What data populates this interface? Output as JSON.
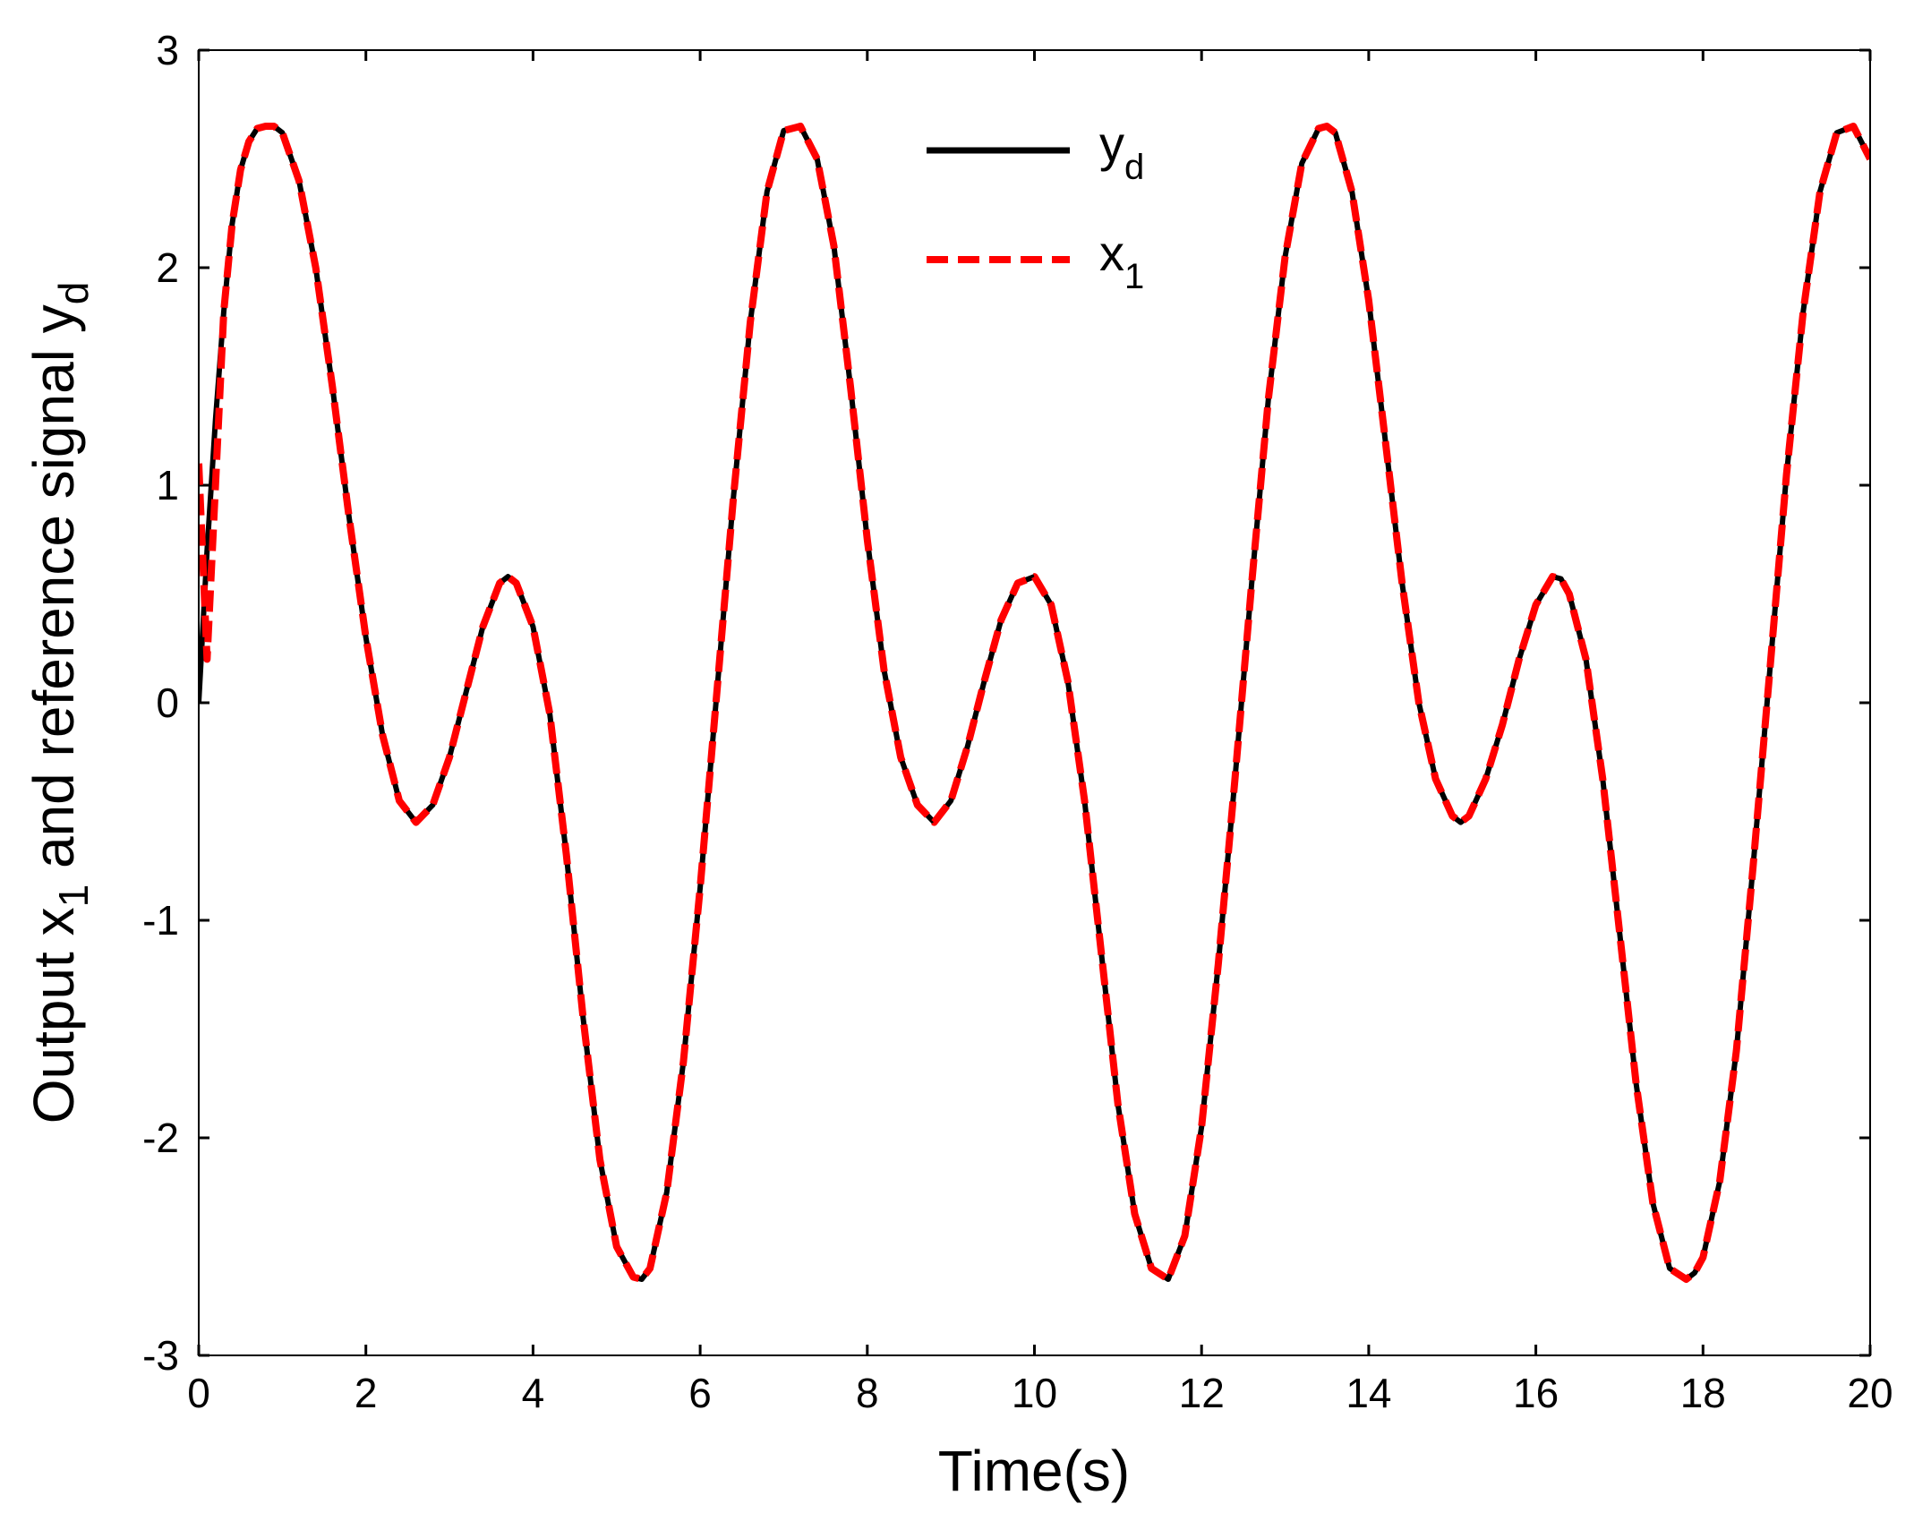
{
  "chart_data": {
    "type": "line",
    "xlabel": "Time(s)",
    "ylabel": {
      "prefix": "Output x",
      "prefix_sub": "1",
      "middle": " and reference signal y",
      "suffix_sub": "d"
    },
    "xlim": [
      0,
      20
    ],
    "ylim": [
      -3,
      3
    ],
    "xticks": [
      0,
      2,
      4,
      6,
      8,
      10,
      12,
      14,
      16,
      18,
      20
    ],
    "yticks": [
      -3,
      -2,
      -1,
      0,
      1,
      2,
      3
    ],
    "grid": false,
    "legend_position": "top-center",
    "x": [
      0.0,
      0.1,
      0.2,
      0.3,
      0.4,
      0.5,
      0.6,
      0.7,
      0.8,
      0.9,
      1.0,
      1.2,
      1.4,
      1.6,
      1.8,
      2.0,
      2.2,
      2.4,
      2.6,
      2.8,
      3.0,
      3.2,
      3.4,
      3.6,
      3.7,
      3.8,
      4.0,
      4.2,
      4.4,
      4.6,
      4.8,
      5.0,
      5.2,
      5.3,
      5.4,
      5.6,
      5.8,
      6.0,
      6.2,
      6.4,
      6.6,
      6.8,
      7.0,
      7.2,
      7.4,
      7.6,
      7.8,
      8.0,
      8.2,
      8.4,
      8.6,
      8.8,
      9.0,
      9.2,
      9.4,
      9.6,
      9.8,
      10.0,
      10.2,
      10.4,
      10.6,
      10.8,
      11.0,
      11.2,
      11.4,
      11.6,
      11.8,
      12.0,
      12.2,
      12.4,
      12.6,
      12.8,
      13.0,
      13.2,
      13.4,
      13.5,
      13.6,
      13.8,
      14.0,
      14.2,
      14.4,
      14.6,
      14.8,
      15.0,
      15.1,
      15.2,
      15.4,
      15.6,
      15.8,
      16.0,
      16.2,
      16.3,
      16.4,
      16.6,
      16.8,
      17.0,
      17.2,
      17.4,
      17.6,
      17.8,
      17.9,
      18.0,
      18.2,
      18.4,
      18.6,
      18.8,
      19.0,
      19.2,
      19.4,
      19.6,
      19.8,
      20.0
    ],
    "series": [
      {
        "name": "y",
        "name_sub": "d",
        "color": "#000000",
        "dash": "solid",
        "values": [
          0.0,
          0.7,
          1.3,
          1.8,
          2.2,
          2.45,
          2.58,
          2.64,
          2.65,
          2.65,
          2.62,
          2.4,
          2.0,
          1.45,
          0.85,
          0.3,
          -0.15,
          -0.45,
          -0.55,
          -0.47,
          -0.25,
          0.05,
          0.35,
          0.55,
          0.58,
          0.55,
          0.35,
          -0.05,
          -0.7,
          -1.45,
          -2.1,
          -2.5,
          -2.64,
          -2.65,
          -2.6,
          -2.25,
          -1.65,
          -0.85,
          0.05,
          0.95,
          1.75,
          2.35,
          2.63,
          2.65,
          2.5,
          2.1,
          1.45,
          0.75,
          0.15,
          -0.25,
          -0.47,
          -0.55,
          -0.45,
          -0.2,
          0.1,
          0.38,
          0.55,
          0.58,
          0.45,
          0.1,
          -0.45,
          -1.15,
          -1.85,
          -2.35,
          -2.6,
          -2.65,
          -2.45,
          -1.95,
          -1.2,
          -0.35,
          0.55,
          1.4,
          2.05,
          2.48,
          2.64,
          2.65,
          2.62,
          2.35,
          1.85,
          1.2,
          0.55,
          0.0,
          -0.35,
          -0.52,
          -0.55,
          -0.52,
          -0.35,
          -0.1,
          0.2,
          0.45,
          0.58,
          0.57,
          0.5,
          0.2,
          -0.35,
          -1.05,
          -1.75,
          -2.3,
          -2.6,
          -2.65,
          -2.62,
          -2.55,
          -2.2,
          -1.6,
          -0.75,
          0.15,
          1.05,
          1.8,
          2.35,
          2.62,
          2.65,
          2.5
        ]
      },
      {
        "name": "x",
        "name_sub": "1",
        "color": "#ff0000",
        "dash": "dashed",
        "values": [
          1.1,
          0.2,
          1.0,
          1.8,
          2.2,
          2.45,
          2.58,
          2.64,
          2.65,
          2.65,
          2.62,
          2.4,
          2.0,
          1.45,
          0.85,
          0.3,
          -0.15,
          -0.45,
          -0.55,
          -0.47,
          -0.25,
          0.05,
          0.35,
          0.55,
          0.58,
          0.55,
          0.35,
          -0.05,
          -0.7,
          -1.45,
          -2.1,
          -2.5,
          -2.64,
          -2.65,
          -2.6,
          -2.25,
          -1.65,
          -0.85,
          0.05,
          0.95,
          1.75,
          2.35,
          2.63,
          2.65,
          2.5,
          2.1,
          1.45,
          0.75,
          0.15,
          -0.25,
          -0.47,
          -0.55,
          -0.45,
          -0.2,
          0.1,
          0.38,
          0.55,
          0.58,
          0.45,
          0.1,
          -0.45,
          -1.15,
          -1.85,
          -2.35,
          -2.6,
          -2.65,
          -2.45,
          -1.95,
          -1.2,
          -0.35,
          0.55,
          1.4,
          2.05,
          2.48,
          2.64,
          2.65,
          2.62,
          2.35,
          1.85,
          1.2,
          0.55,
          0.0,
          -0.35,
          -0.52,
          -0.55,
          -0.52,
          -0.35,
          -0.1,
          0.2,
          0.45,
          0.58,
          0.57,
          0.5,
          0.2,
          -0.35,
          -1.05,
          -1.75,
          -2.3,
          -2.6,
          -2.65,
          -2.62,
          -2.55,
          -2.2,
          -1.6,
          -0.75,
          0.15,
          1.05,
          1.8,
          2.35,
          2.62,
          2.65,
          2.5
        ]
      }
    ]
  }
}
